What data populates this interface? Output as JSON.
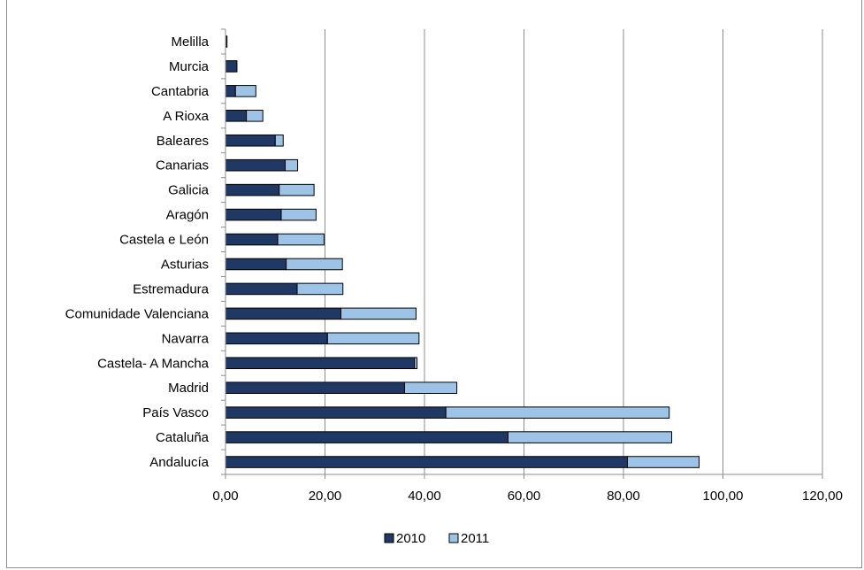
{
  "chart_data": {
    "type": "bar",
    "orientation": "horizontal",
    "stacked": true,
    "title": "",
    "xlabel": "",
    "ylabel": "",
    "xlim": [
      0,
      120
    ],
    "x_ticks": [
      "0,00",
      "20,00",
      "40,00",
      "60,00",
      "80,00",
      "100,00",
      "120,00"
    ],
    "x_tick_values": [
      0,
      20,
      40,
      60,
      80,
      100,
      120
    ],
    "grid": "vertical major gridlines",
    "legend_position": "bottom",
    "categories": [
      "Melilla",
      "Murcia",
      "Cantabria",
      "A Rioxa",
      "Baleares",
      "Canarias",
      "Galicia",
      "Aragón",
      "Castela e León",
      "Asturias",
      "Estremadura",
      "Comunidade Valenciana",
      "Navarra",
      "Castela- A Mancha",
      "Madrid",
      "País Vasco",
      "Cataluña",
      "Andalucía"
    ],
    "series": [
      {
        "name": "2010",
        "color": "#1f3864",
        "values": [
          0.3,
          2.3,
          2.0,
          4.2,
          10.0,
          12.0,
          10.8,
          11.2,
          10.5,
          12.2,
          14.4,
          23.2,
          20.5,
          38.0,
          36.0,
          44.3,
          56.8,
          80.8
        ]
      },
      {
        "name": "2011",
        "color": "#9dc3e6",
        "values": [
          0.0,
          0.0,
          4.1,
          3.3,
          1.6,
          2.5,
          7.0,
          7.0,
          9.3,
          11.3,
          9.2,
          15.1,
          18.4,
          0.5,
          10.5,
          44.9,
          32.9,
          14.4
        ]
      }
    ]
  }
}
